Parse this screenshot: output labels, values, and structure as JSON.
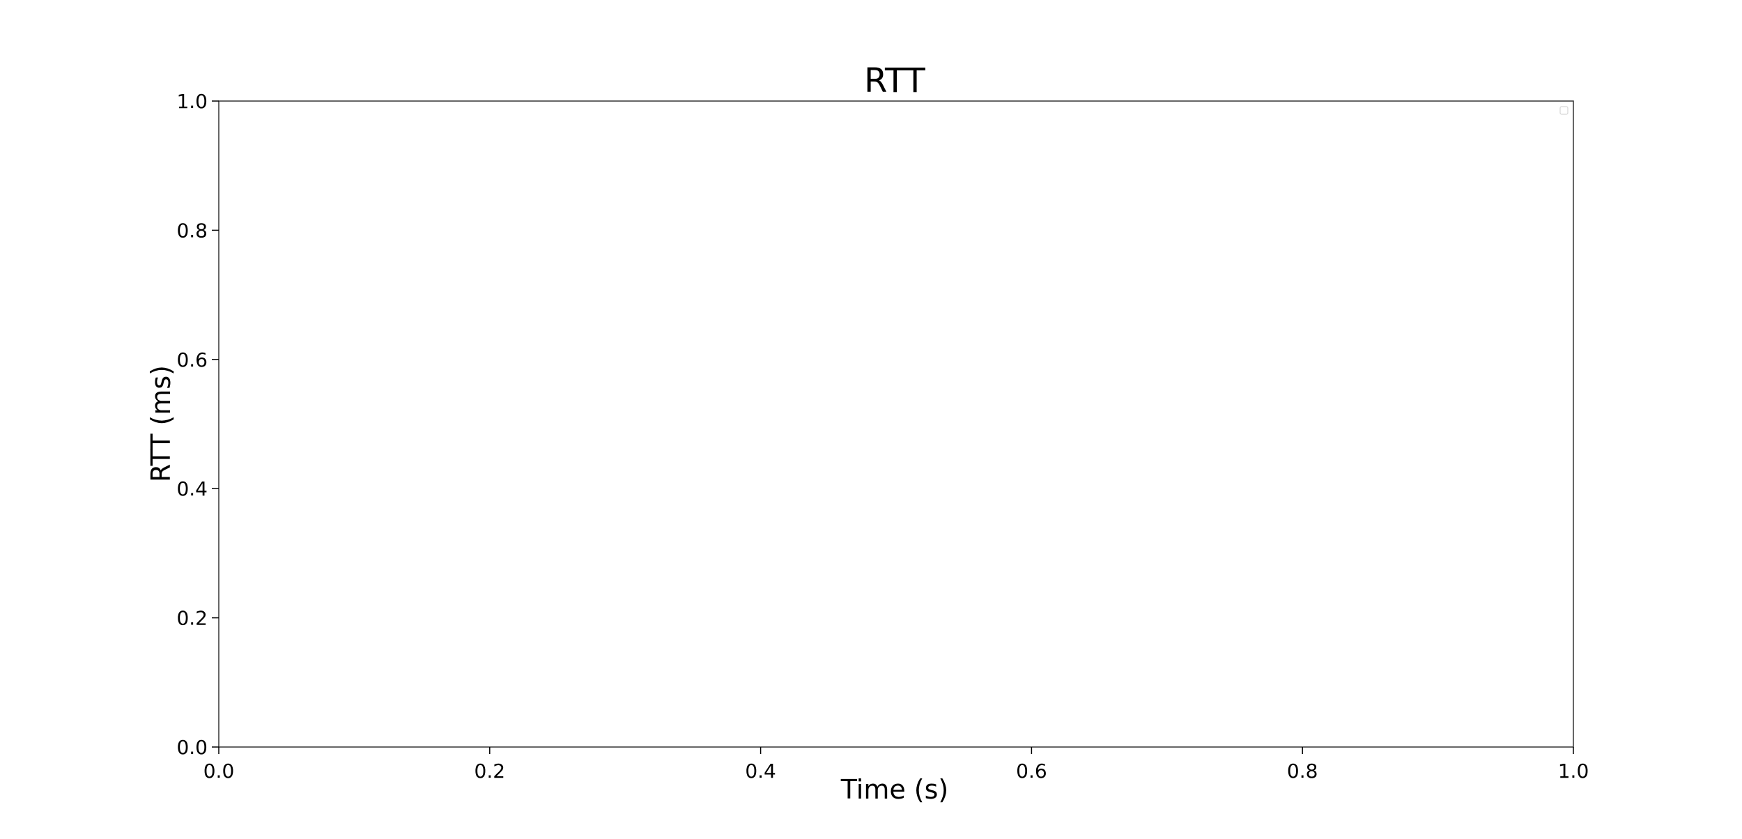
{
  "chart_data": {
    "type": "line",
    "title": "RTT",
    "xlabel": "Time (s)",
    "ylabel": "RTT (ms)",
    "xlim": [
      0.0,
      1.0
    ],
    "ylim": [
      0.0,
      1.0
    ],
    "xticks": [
      "0.0",
      "0.2",
      "0.4",
      "0.6",
      "0.8",
      "1.0"
    ],
    "yticks": [
      "0.0",
      "0.2",
      "0.4",
      "0.6",
      "0.8",
      "1.0"
    ],
    "series": [],
    "grid": false,
    "legend": "upper-right (empty)"
  }
}
